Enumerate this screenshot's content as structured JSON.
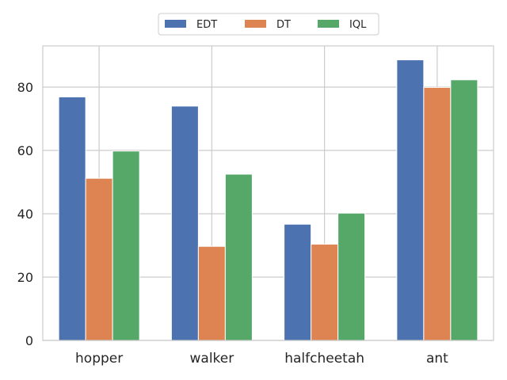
{
  "chart_data": {
    "type": "bar",
    "categories": [
      "hopper",
      "walker",
      "halfcheetah",
      "ant"
    ],
    "series": [
      {
        "name": "EDT",
        "color": "#4c72b0",
        "values": [
          76.9,
          74.0,
          36.7,
          88.6
        ]
      },
      {
        "name": "DT",
        "color": "#dd8452",
        "values": [
          51.2,
          29.7,
          30.4,
          79.9
        ]
      },
      {
        "name": "IQL",
        "color": "#55a868",
        "values": [
          59.8,
          52.5,
          40.2,
          82.3
        ]
      }
    ],
    "yticks": [
      0,
      20,
      40,
      60,
      80
    ],
    "ylim": [
      0,
      93
    ],
    "grid": true,
    "legend_position": "top-center",
    "legend_columns": 3
  }
}
